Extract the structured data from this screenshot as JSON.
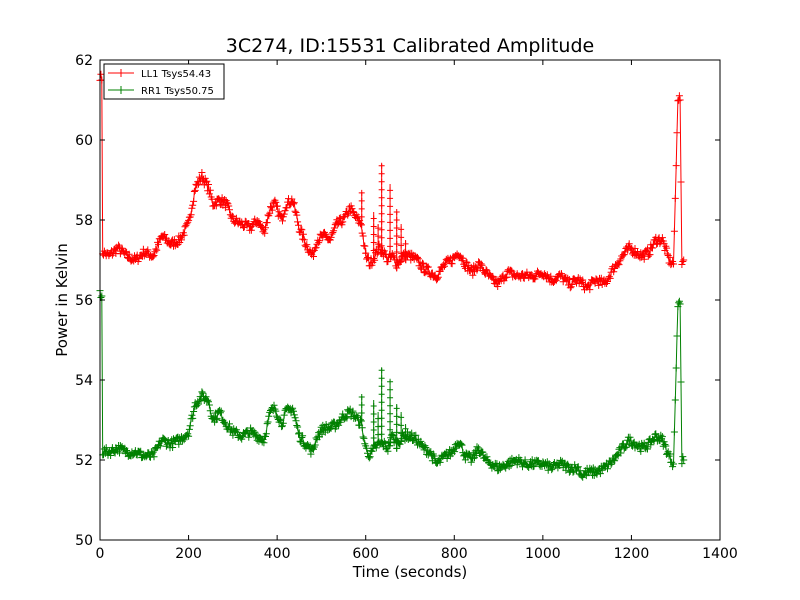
{
  "chart_data": {
    "type": "line",
    "title": "3C274, ID:15531 Calibrated Amplitude",
    "xlabel": "Time (seconds)",
    "ylabel": "Power in Kelvin",
    "xlim": [
      0,
      1400
    ],
    "ylim": [
      50,
      62
    ],
    "xticks": [
      0,
      200,
      400,
      600,
      800,
      1000,
      1200,
      1400
    ],
    "yticks": [
      50,
      52,
      54,
      56,
      58,
      60,
      62
    ],
    "grid": false,
    "legend_position": "top-left",
    "marker": "+",
    "series": [
      {
        "name": "LL1 Tsys54.43",
        "color": "#ff0000",
        "points": [
          [
            0,
            61.6
          ],
          [
            4,
            61.5
          ],
          [
            6,
            57.2
          ],
          [
            20,
            57.1
          ],
          [
            40,
            57.3
          ],
          [
            60,
            57.1
          ],
          [
            80,
            57.0
          ],
          [
            100,
            57.2
          ],
          [
            120,
            57.1
          ],
          [
            140,
            57.6
          ],
          [
            160,
            57.4
          ],
          [
            180,
            57.5
          ],
          [
            200,
            57.9
          ],
          [
            215,
            58.8
          ],
          [
            230,
            59.1
          ],
          [
            245,
            58.8
          ],
          [
            255,
            58.4
          ],
          [
            270,
            58.5
          ],
          [
            285,
            58.4
          ],
          [
            300,
            58.0
          ],
          [
            320,
            57.9
          ],
          [
            340,
            57.8
          ],
          [
            355,
            58.0
          ],
          [
            370,
            57.7
          ],
          [
            385,
            58.3
          ],
          [
            395,
            58.4
          ],
          [
            410,
            58.0
          ],
          [
            420,
            58.4
          ],
          [
            435,
            58.5
          ],
          [
            450,
            57.8
          ],
          [
            465,
            57.4
          ],
          [
            480,
            57.1
          ],
          [
            490,
            57.5
          ],
          [
            505,
            57.6
          ],
          [
            520,
            57.5
          ],
          [
            535,
            57.9
          ],
          [
            550,
            58.0
          ],
          [
            565,
            58.3
          ],
          [
            575,
            58.1
          ],
          [
            590,
            57.9
          ],
          [
            600,
            57.1
          ],
          [
            610,
            56.9
          ],
          [
            620,
            57.1
          ],
          [
            630,
            57.3
          ],
          [
            640,
            57.2
          ],
          [
            650,
            57.0
          ],
          [
            660,
            57.1
          ],
          [
            670,
            56.9
          ],
          [
            685,
            57.1
          ],
          [
            700,
            57.1
          ],
          [
            715,
            57.0
          ],
          [
            730,
            56.8
          ],
          [
            745,
            56.7
          ],
          [
            760,
            56.6
          ],
          [
            780,
            56.9
          ],
          [
            795,
            57.0
          ],
          [
            810,
            57.2
          ],
          [
            825,
            56.9
          ],
          [
            840,
            56.7
          ],
          [
            855,
            56.9
          ],
          [
            870,
            56.7
          ],
          [
            885,
            56.5
          ],
          [
            900,
            56.4
          ],
          [
            920,
            56.7
          ],
          [
            940,
            56.6
          ],
          [
            960,
            56.6
          ],
          [
            980,
            56.6
          ],
          [
            1000,
            56.7
          ],
          [
            1020,
            56.5
          ],
          [
            1040,
            56.6
          ],
          [
            1060,
            56.4
          ],
          [
            1080,
            56.5
          ],
          [
            1100,
            56.3
          ],
          [
            1120,
            56.5
          ],
          [
            1140,
            56.4
          ],
          [
            1160,
            56.8
          ],
          [
            1180,
            57.1
          ],
          [
            1195,
            57.3
          ],
          [
            1210,
            57.2
          ],
          [
            1225,
            57.1
          ],
          [
            1240,
            57.2
          ],
          [
            1255,
            57.5
          ],
          [
            1270,
            57.5
          ],
          [
            1285,
            57.0
          ],
          [
            1295,
            56.9
          ],
          [
            1305,
            61.0
          ],
          [
            1310,
            61.0
          ],
          [
            1314,
            56.9
          ],
          [
            1318,
            57.0
          ]
        ],
        "spikes": [
          [
            591,
            58.7
          ],
          [
            600,
            57.3
          ],
          [
            618,
            58.2
          ],
          [
            628,
            57.9
          ],
          [
            636,
            59.4
          ],
          [
            655,
            58.9
          ],
          [
            670,
            58.2
          ],
          [
            680,
            57.9
          ],
          [
            690,
            57.5
          ]
        ]
      },
      {
        "name": "RR1 Tsys50.75",
        "color": "#008000",
        "points": [
          [
            0,
            56.2
          ],
          [
            4,
            56.1
          ],
          [
            6,
            52.2
          ],
          [
            20,
            52.2
          ],
          [
            40,
            52.3
          ],
          [
            60,
            52.2
          ],
          [
            80,
            52.2
          ],
          [
            100,
            52.1
          ],
          [
            120,
            52.1
          ],
          [
            140,
            52.5
          ],
          [
            160,
            52.4
          ],
          [
            180,
            52.5
          ],
          [
            200,
            52.7
          ],
          [
            215,
            53.4
          ],
          [
            230,
            53.6
          ],
          [
            245,
            53.5
          ],
          [
            255,
            53.0
          ],
          [
            270,
            53.2
          ],
          [
            285,
            52.9
          ],
          [
            300,
            52.7
          ],
          [
            320,
            52.6
          ],
          [
            340,
            52.7
          ],
          [
            355,
            52.6
          ],
          [
            370,
            52.5
          ],
          [
            385,
            53.2
          ],
          [
            395,
            53.3
          ],
          [
            410,
            52.9
          ],
          [
            420,
            53.2
          ],
          [
            435,
            53.3
          ],
          [
            450,
            52.6
          ],
          [
            465,
            52.4
          ],
          [
            480,
            52.2
          ],
          [
            490,
            52.6
          ],
          [
            505,
            52.8
          ],
          [
            520,
            52.8
          ],
          [
            535,
            52.9
          ],
          [
            550,
            53.1
          ],
          [
            565,
            53.2
          ],
          [
            575,
            53.1
          ],
          [
            590,
            52.9
          ],
          [
            600,
            52.3
          ],
          [
            610,
            52.1
          ],
          [
            620,
            52.3
          ],
          [
            630,
            52.4
          ],
          [
            640,
            52.4
          ],
          [
            650,
            52.3
          ],
          [
            660,
            52.6
          ],
          [
            670,
            52.4
          ],
          [
            685,
            52.6
          ],
          [
            700,
            52.6
          ],
          [
            715,
            52.5
          ],
          [
            730,
            52.3
          ],
          [
            745,
            52.2
          ],
          [
            760,
            51.9
          ],
          [
            780,
            52.1
          ],
          [
            795,
            52.2
          ],
          [
            810,
            52.5
          ],
          [
            825,
            52.1
          ],
          [
            840,
            52.0
          ],
          [
            855,
            52.3
          ],
          [
            870,
            52.0
          ],
          [
            885,
            51.9
          ],
          [
            900,
            51.8
          ],
          [
            920,
            51.9
          ],
          [
            940,
            52.0
          ],
          [
            960,
            51.9
          ],
          [
            980,
            51.9
          ],
          [
            1000,
            51.9
          ],
          [
            1020,
            51.8
          ],
          [
            1040,
            51.9
          ],
          [
            1060,
            51.8
          ],
          [
            1080,
            51.8
          ],
          [
            1090,
            51.6
          ],
          [
            1100,
            51.7
          ],
          [
            1120,
            51.7
          ],
          [
            1140,
            51.8
          ],
          [
            1160,
            52.0
          ],
          [
            1180,
            52.3
          ],
          [
            1195,
            52.5
          ],
          [
            1210,
            52.4
          ],
          [
            1225,
            52.3
          ],
          [
            1240,
            52.4
          ],
          [
            1255,
            52.6
          ],
          [
            1270,
            52.5
          ],
          [
            1285,
            52.1
          ],
          [
            1295,
            51.9
          ],
          [
            1305,
            55.9
          ],
          [
            1310,
            55.9
          ],
          [
            1314,
            52.0
          ],
          [
            1318,
            52.0
          ]
        ],
        "spikes": [
          [
            591,
            53.6
          ],
          [
            618,
            53.5
          ],
          [
            628,
            53.2
          ],
          [
            636,
            54.3
          ],
          [
            655,
            54.0
          ],
          [
            670,
            53.4
          ],
          [
            680,
            53.2
          ],
          [
            690,
            52.9
          ]
        ]
      }
    ]
  }
}
